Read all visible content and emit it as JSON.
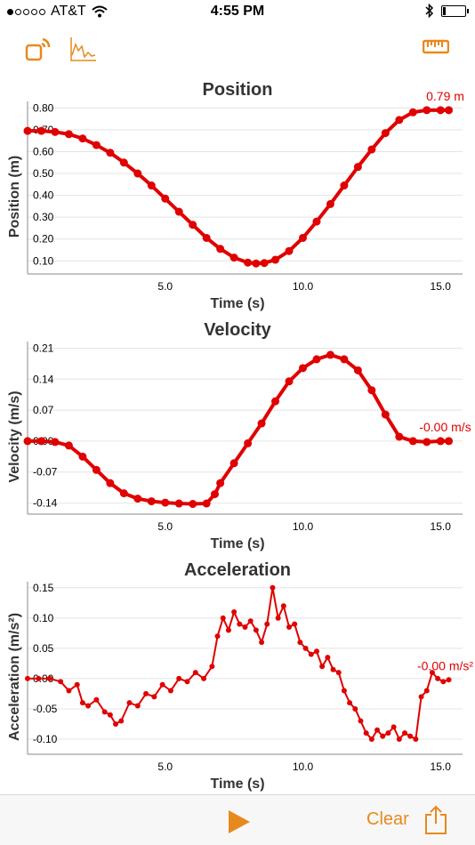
{
  "status": {
    "carrier": "AT&T",
    "time": "4:55 PM"
  },
  "toolbar": {
    "left_icons": [
      "sensor-connect-icon",
      "graph-icon"
    ],
    "right_icon": "ruler-icon",
    "accent_color": "#e8891d"
  },
  "bottom": {
    "clear_label": "Clear",
    "accent_color": "#e8891d"
  },
  "chart_data": [
    {
      "type": "scatter",
      "title": "Position",
      "xlabel": "Time (s)",
      "ylabel": "Position (m)",
      "xlim": [
        0,
        15.8
      ],
      "ylim": [
        0.04,
        0.83
      ],
      "xticks": [
        "5.0",
        "10.0",
        "15.0"
      ],
      "yticks": [
        "0.10",
        "0.20",
        "0.30",
        "0.40",
        "0.50",
        "0.60",
        "0.70",
        "0.80"
      ],
      "last_value": "0.79 m",
      "color": "#e00000",
      "series": [
        {
          "x": [
            0,
            0.5,
            1.0,
            1.5,
            2.0,
            2.5,
            3.0,
            3.5,
            4.0,
            4.5,
            5.0,
            5.5,
            6.0,
            6.5,
            7.0,
            7.5,
            8.0,
            8.3,
            8.6,
            9.0,
            9.5,
            10.0,
            10.5,
            11.0,
            11.5,
            12.0,
            12.5,
            13.0,
            13.5,
            14.0,
            14.5,
            15.0,
            15.3
          ],
          "y": [
            0.695,
            0.695,
            0.69,
            0.68,
            0.66,
            0.63,
            0.595,
            0.55,
            0.5,
            0.445,
            0.385,
            0.325,
            0.265,
            0.205,
            0.155,
            0.115,
            0.092,
            0.088,
            0.09,
            0.105,
            0.145,
            0.205,
            0.28,
            0.36,
            0.445,
            0.53,
            0.61,
            0.685,
            0.745,
            0.78,
            0.79,
            0.79,
            0.79
          ]
        }
      ]
    },
    {
      "type": "scatter",
      "title": "Velocity",
      "xlabel": "Time (s)",
      "ylabel": "Velocity (m/s)",
      "xlim": [
        0,
        15.8
      ],
      "ylim": [
        -0.165,
        0.225
      ],
      "xticks": [
        "5.0",
        "10.0",
        "15.0"
      ],
      "yticks": [
        "-0.14",
        "-0.07",
        "0.00",
        "0.07",
        "0.14",
        "0.21"
      ],
      "last_value": "-0.00 m/s",
      "color": "#e00000",
      "series": [
        {
          "x": [
            0,
            0.5,
            1.0,
            1.5,
            2.0,
            2.5,
            3.0,
            3.5,
            4.0,
            4.5,
            5.0,
            5.5,
            6.0,
            6.5,
            6.8,
            7.0,
            7.5,
            8.0,
            8.5,
            9.0,
            9.5,
            10.0,
            10.5,
            11.0,
            11.5,
            12.0,
            12.5,
            13.0,
            13.5,
            14.0,
            14.5,
            15.0,
            15.3
          ],
          "y": [
            0.0,
            0.0,
            -0.002,
            -0.01,
            -0.035,
            -0.065,
            -0.095,
            -0.118,
            -0.13,
            -0.136,
            -0.139,
            -0.141,
            -0.142,
            -0.141,
            -0.12,
            -0.095,
            -0.05,
            -0.005,
            0.04,
            0.09,
            0.135,
            0.165,
            0.185,
            0.195,
            0.185,
            0.16,
            0.115,
            0.06,
            0.01,
            0.0,
            -0.002,
            0.0,
            0.0
          ]
        }
      ]
    },
    {
      "type": "line",
      "title": "Acceleration",
      "xlabel": "Time (s)",
      "ylabel": "Acceleration (m/s²)",
      "xlim": [
        0,
        15.8
      ],
      "ylim": [
        -0.125,
        0.16
      ],
      "xticks": [
        "5.0",
        "10.0",
        "15.0"
      ],
      "yticks": [
        "-0.10",
        "-0.05",
        "0.00",
        "0.05",
        "0.10",
        "0.15"
      ],
      "last_value": "-0.00 m/s²",
      "color": "#e00000",
      "series": [
        {
          "x": [
            0,
            0.4,
            0.8,
            1.2,
            1.5,
            1.8,
            2.0,
            2.2,
            2.5,
            2.8,
            3.0,
            3.2,
            3.4,
            3.7,
            4.0,
            4.3,
            4.6,
            4.9,
            5.2,
            5.5,
            5.8,
            6.1,
            6.4,
            6.7,
            6.9,
            7.1,
            7.3,
            7.5,
            7.7,
            7.9,
            8.1,
            8.3,
            8.5,
            8.7,
            8.9,
            9.1,
            9.3,
            9.5,
            9.7,
            9.9,
            10.1,
            10.3,
            10.5,
            10.7,
            10.9,
            11.1,
            11.3,
            11.5,
            11.7,
            11.9,
            12.1,
            12.3,
            12.5,
            12.7,
            12.9,
            13.1,
            13.3,
            13.5,
            13.7,
            13.9,
            14.1,
            14.3,
            14.5,
            14.7,
            14.9,
            15.1,
            15.3
          ],
          "y": [
            0.0,
            0.0,
            0.0,
            -0.005,
            -0.02,
            -0.01,
            -0.04,
            -0.045,
            -0.035,
            -0.055,
            -0.06,
            -0.075,
            -0.07,
            -0.04,
            -0.045,
            -0.025,
            -0.03,
            -0.01,
            -0.02,
            0.0,
            -0.005,
            0.01,
            0.0,
            0.02,
            0.07,
            0.1,
            0.08,
            0.11,
            0.09,
            0.085,
            0.095,
            0.08,
            0.06,
            0.09,
            0.15,
            0.1,
            0.12,
            0.085,
            0.09,
            0.06,
            0.05,
            0.04,
            0.045,
            0.02,
            0.035,
            0.015,
            0.01,
            -0.02,
            -0.04,
            -0.05,
            -0.07,
            -0.09,
            -0.1,
            -0.085,
            -0.095,
            -0.09,
            -0.08,
            -0.1,
            -0.09,
            -0.095,
            -0.1,
            -0.03,
            -0.02,
            0.01,
            0.0,
            -0.005,
            -0.002
          ]
        }
      ]
    }
  ]
}
